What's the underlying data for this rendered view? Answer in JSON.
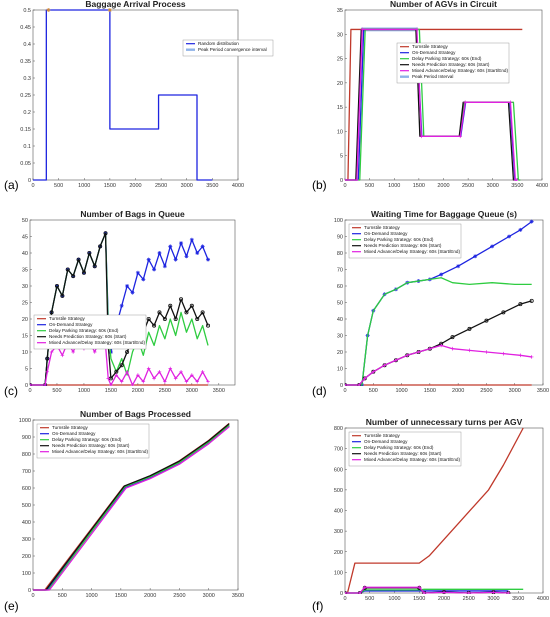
{
  "colors": {
    "turnstile": "#c0392b",
    "ondemand": "#1d24e0",
    "delay": "#2ecc40",
    "needs": "#111111",
    "mixed": "#e020e0",
    "peak": "#8fb3e8",
    "random": "#1d24e0"
  },
  "legend_labels": {
    "random": "Random distribution",
    "peak": "Peak Period convergence interval",
    "peak_b": "Peak Period Interval",
    "turnstile": "Turnstile Strategy",
    "ondemand": "On-Demand Strategy",
    "delay": "Delay Parking Strategy: 60s (End)",
    "needs": "Needs Prediction Strategy: 60s (Start)",
    "mixed": "Mixed Advance/Delay Strategy: 60s (Start/End)"
  },
  "chart_data": [
    {
      "id": "a",
      "panel_label": "(a)",
      "type": "line",
      "title": "Baggage Arrival Process",
      "xlim": [
        0,
        4000
      ],
      "ylim": [
        0,
        0.5
      ],
      "xticks": [
        0,
        500,
        1000,
        1500,
        2000,
        2500,
        3000,
        3500,
        4000
      ],
      "yticks": [
        0,
        0.05,
        0.1,
        0.15,
        0.2,
        0.25,
        0.3,
        0.35,
        0.4,
        0.45,
        0.5
      ],
      "legend": [
        "random",
        "peak"
      ],
      "series": [
        {
          "key": "random",
          "x": [
            0,
            260,
            260,
            1500,
            1500,
            2100,
            2100,
            2450,
            2450,
            3200,
            3200,
            3500
          ],
          "y": [
            0,
            0,
            0.5,
            0.5,
            0.15,
            0.15,
            0.15,
            0.15,
            0.25,
            0.25,
            0,
            0
          ]
        },
        {
          "key": "peak",
          "markers": "star",
          "x": [
            300,
            1500
          ],
          "y": [
            0.5,
            0.5
          ]
        }
      ]
    },
    {
      "id": "b",
      "panel_label": "(b)",
      "type": "line",
      "title": "Number of AGVs in Circuit",
      "xlim": [
        0,
        4000
      ],
      "ylim": [
        0,
        35
      ],
      "xticks": [
        0,
        500,
        1000,
        1500,
        2000,
        2500,
        3000,
        3500,
        4000
      ],
      "yticks": [
        0,
        5,
        10,
        15,
        20,
        25,
        30,
        35
      ],
      "legend": [
        "turnstile",
        "ondemand",
        "delay",
        "needs",
        "mixed",
        "peak_b"
      ],
      "series": [
        {
          "key": "turnstile",
          "x": [
            0,
            60,
            120,
            3600
          ],
          "y": [
            0,
            0,
            31,
            31
          ]
        },
        {
          "key": "ondemand",
          "x": [
            0,
            270,
            380,
            1450,
            1560,
            2350,
            2450,
            3350,
            3450,
            3500
          ],
          "y": [
            0,
            0,
            31,
            31,
            9,
            9,
            16,
            16,
            0,
            0
          ]
        },
        {
          "key": "delay",
          "x": [
            0,
            300,
            410,
            1510,
            1600,
            2330,
            2420,
            3420,
            3520,
            3560
          ],
          "y": [
            0,
            0,
            31,
            31,
            9,
            9,
            16,
            16,
            0,
            0
          ]
        },
        {
          "key": "needs",
          "x": [
            0,
            220,
            330,
            1440,
            1520,
            2320,
            2400,
            3320,
            3420,
            3450
          ],
          "y": [
            0,
            0,
            31,
            31,
            9,
            9,
            16,
            16,
            0,
            0
          ]
        },
        {
          "key": "mixed",
          "markers": "plus",
          "x": [
            0,
            240,
            350,
            1460,
            1550,
            2340,
            2440,
            3360,
            3460,
            3480
          ],
          "y": [
            0,
            0,
            31,
            31,
            9,
            9,
            16,
            16,
            0,
            0
          ]
        }
      ]
    },
    {
      "id": "c",
      "panel_label": "(c)",
      "type": "line",
      "title": "Number of Bags in Queue",
      "xlim": [
        0,
        3800
      ],
      "ylim": [
        0,
        50
      ],
      "xticks": [
        0,
        500,
        1000,
        1500,
        2000,
        2500,
        3000,
        3500
      ],
      "yticks": [
        0,
        5,
        10,
        15,
        20,
        25,
        30,
        35,
        40,
        45,
        50
      ],
      "legend": [
        "turnstile",
        "ondemand",
        "delay",
        "needs",
        "mixed"
      ],
      "series": [
        {
          "key": "turnstile",
          "x": [
            0,
            3300
          ],
          "y": [
            0,
            0
          ]
        },
        {
          "key": "ondemand",
          "markers": "star",
          "x": [
            0,
            280,
            320,
            400,
            500,
            600,
            700,
            800,
            900,
            1000,
            1100,
            1200,
            1300,
            1400,
            1450,
            1500,
            1600,
            1700,
            1800,
            1900,
            2000,
            2100,
            2200,
            2300,
            2400,
            2500,
            2600,
            2700,
            2800,
            2900,
            3000,
            3100,
            3200,
            3300
          ],
          "y": [
            0,
            0,
            8,
            22,
            30,
            27,
            35,
            33,
            38,
            34,
            40,
            36,
            42,
            46,
            20,
            10,
            18,
            24,
            30,
            28,
            34,
            32,
            38,
            35,
            40,
            36,
            42,
            38,
            43,
            39,
            44,
            40,
            42,
            38
          ]
        },
        {
          "key": "delay",
          "x": [
            0,
            280,
            320,
            400,
            500,
            600,
            700,
            800,
            900,
            1000,
            1100,
            1200,
            1300,
            1400,
            1450,
            1500,
            1600,
            1700,
            1800,
            1900,
            2000,
            2100,
            2200,
            2300,
            2400,
            2500,
            2600,
            2700,
            2800,
            2900,
            3000,
            3100,
            3200,
            3300
          ],
          "y": [
            0,
            0,
            8,
            22,
            30,
            27,
            35,
            33,
            38,
            34,
            40,
            36,
            42,
            46,
            18,
            8,
            4,
            8,
            3,
            10,
            14,
            9,
            16,
            12,
            18,
            14,
            20,
            15,
            22,
            16,
            20,
            14,
            18,
            12
          ]
        },
        {
          "key": "needs",
          "markers": "circle",
          "x": [
            0,
            280,
            320,
            400,
            500,
            600,
            700,
            800,
            900,
            1000,
            1100,
            1200,
            1300,
            1400,
            1450,
            1500,
            1600,
            1700,
            1800,
            1900,
            2000,
            2100,
            2200,
            2300,
            2400,
            2500,
            2600,
            2700,
            2800,
            2900,
            3000,
            3100,
            3200,
            3300
          ],
          "y": [
            0,
            0,
            8,
            22,
            30,
            27,
            35,
            33,
            38,
            34,
            40,
            36,
            42,
            46,
            12,
            2,
            4,
            6,
            10,
            14,
            18,
            16,
            20,
            18,
            22,
            20,
            24,
            20,
            26,
            22,
            24,
            20,
            22,
            18
          ]
        },
        {
          "key": "mixed",
          "markers": "plus",
          "x": [
            0,
            280,
            320,
            400,
            500,
            600,
            700,
            800,
            900,
            1000,
            1100,
            1200,
            1300,
            1400,
            1450,
            1500,
            1600,
            1700,
            1800,
            1900,
            2000,
            2100,
            2200,
            2300,
            2400,
            2500,
            2600,
            2700,
            2800,
            2900,
            3000,
            3100,
            3200,
            3300
          ],
          "y": [
            0,
            0,
            4,
            10,
            12,
            9,
            13,
            10,
            14,
            11,
            13,
            10,
            14,
            12,
            2,
            0,
            3,
            1,
            4,
            0,
            3,
            1,
            5,
            2,
            4,
            1,
            5,
            2,
            4,
            1,
            3,
            1,
            4,
            1
          ]
        }
      ]
    },
    {
      "id": "d",
      "panel_label": "(d)",
      "type": "line",
      "title": "Waiting Time for Baggage Queue (s)",
      "xlim": [
        0,
        3500
      ],
      "ylim": [
        0,
        100
      ],
      "xticks": [
        0,
        500,
        1000,
        1500,
        2000,
        2500,
        3000,
        3500
      ],
      "yticks": [
        0,
        10,
        20,
        30,
        40,
        50,
        60,
        70,
        80,
        90,
        100
      ],
      "legend": [
        "turnstile",
        "ondemand",
        "delay",
        "needs",
        "mixed"
      ],
      "series": [
        {
          "key": "turnstile",
          "x": [
            0,
            3300
          ],
          "y": [
            0,
            0
          ]
        },
        {
          "key": "ondemand",
          "markers": "star",
          "x": [
            0,
            300,
            400,
            500,
            700,
            900,
            1100,
            1300,
            1500,
            1700,
            2000,
            2300,
            2600,
            2900,
            3100,
            3300
          ],
          "y": [
            0,
            0,
            30,
            45,
            55,
            58,
            62,
            63,
            64,
            67,
            72,
            78,
            84,
            90,
            94,
            99
          ]
        },
        {
          "key": "delay",
          "x": [
            0,
            300,
            400,
            500,
            700,
            900,
            1100,
            1300,
            1500,
            1700,
            1900,
            2200,
            2600,
            3000,
            3300
          ],
          "y": [
            0,
            0,
            30,
            45,
            55,
            58,
            62,
            63,
            64,
            65,
            62,
            61,
            62,
            61,
            61
          ]
        },
        {
          "key": "needs",
          "markers": "circle",
          "x": [
            0,
            250,
            350,
            500,
            700,
            900,
            1100,
            1300,
            1500,
            1700,
            1900,
            2200,
            2500,
            2800,
            3100,
            3300
          ],
          "y": [
            0,
            0,
            4,
            8,
            12,
            15,
            18,
            20,
            22,
            25,
            29,
            34,
            39,
            44,
            49,
            51
          ]
        },
        {
          "key": "mixed",
          "markers": "plus",
          "x": [
            0,
            250,
            350,
            500,
            700,
            900,
            1100,
            1300,
            1500,
            1700,
            1900,
            2200,
            2500,
            2800,
            3100,
            3300
          ],
          "y": [
            0,
            0,
            4,
            8,
            12,
            15,
            18,
            20,
            22,
            24,
            22,
            21,
            20,
            19,
            18,
            17
          ]
        }
      ]
    },
    {
      "id": "e",
      "panel_label": "(e)",
      "type": "line",
      "title": "Number of Bags Processed",
      "xlim": [
        0,
        3500
      ],
      "ylim": [
        0,
        1000
      ],
      "xticks": [
        0,
        500,
        1000,
        1500,
        2000,
        2500,
        3000,
        3500
      ],
      "yticks": [
        0,
        100,
        200,
        300,
        400,
        500,
        600,
        700,
        800,
        900,
        1000
      ],
      "legend": [
        "turnstile",
        "ondemand",
        "delay",
        "needs",
        "mixed"
      ],
      "series": [
        {
          "key": "turnstile",
          "x": [
            0,
            200,
            1550,
            2000,
            2500,
            3000,
            3350
          ],
          "y": [
            0,
            0,
            610,
            670,
            760,
            880,
            980
          ]
        },
        {
          "key": "ondemand",
          "x": [
            0,
            240,
            1580,
            2000,
            2500,
            3000,
            3350
          ],
          "y": [
            0,
            0,
            605,
            660,
            745,
            865,
            965
          ]
        },
        {
          "key": "delay",
          "x": [
            0,
            260,
            1570,
            2000,
            2500,
            3000,
            3350
          ],
          "y": [
            0,
            0,
            608,
            665,
            750,
            870,
            970
          ]
        },
        {
          "key": "needs",
          "x": [
            0,
            220,
            1560,
            2000,
            2500,
            3000,
            3350
          ],
          "y": [
            0,
            0,
            612,
            672,
            758,
            878,
            978
          ]
        },
        {
          "key": "mixed",
          "x": [
            0,
            280,
            1590,
            2000,
            2500,
            3000,
            3350
          ],
          "y": [
            0,
            0,
            600,
            655,
            740,
            860,
            960
          ]
        }
      ]
    },
    {
      "id": "f",
      "panel_label": "(f)",
      "type": "line",
      "title": "Number of unnecessary turns per AGV",
      "xlim": [
        0,
        4000
      ],
      "ylim": [
        0,
        800
      ],
      "xticks": [
        0,
        500,
        1000,
        1500,
        2000,
        2500,
        3000,
        3500,
        4000
      ],
      "yticks": [
        0,
        100,
        200,
        300,
        400,
        500,
        600,
        700,
        800
      ],
      "legend": [
        "turnstile",
        "ondemand",
        "delay",
        "needs",
        "mixed"
      ],
      "series": [
        {
          "key": "turnstile",
          "x": [
            0,
            50,
            200,
            1500,
            1700,
            2000,
            2300,
            2600,
            2900,
            3200,
            3600
          ],
          "y": [
            0,
            0,
            145,
            145,
            180,
            260,
            340,
            420,
            500,
            620,
            800
          ]
        },
        {
          "key": "ondemand",
          "x": [
            0,
            300,
            400,
            3300
          ],
          "y": [
            0,
            0,
            10,
            10
          ]
        },
        {
          "key": "delay",
          "x": [
            0,
            300,
            400,
            1500,
            1600,
            3600
          ],
          "y": [
            0,
            0,
            15,
            15,
            18,
            18
          ]
        },
        {
          "key": "needs",
          "markers": "circle",
          "x": [
            0,
            300,
            400,
            1500,
            1600,
            2000,
            2500,
            3000,
            3300
          ],
          "y": [
            0,
            0,
            25,
            25,
            0,
            5,
            0,
            4,
            0
          ]
        },
        {
          "key": "mixed",
          "markers": "plus",
          "x": [
            0,
            300,
            400,
            1500,
            1600,
            2000,
            2500,
            3000,
            3300
          ],
          "y": [
            0,
            0,
            28,
            28,
            0,
            3,
            0,
            3,
            0
          ]
        }
      ]
    }
  ]
}
